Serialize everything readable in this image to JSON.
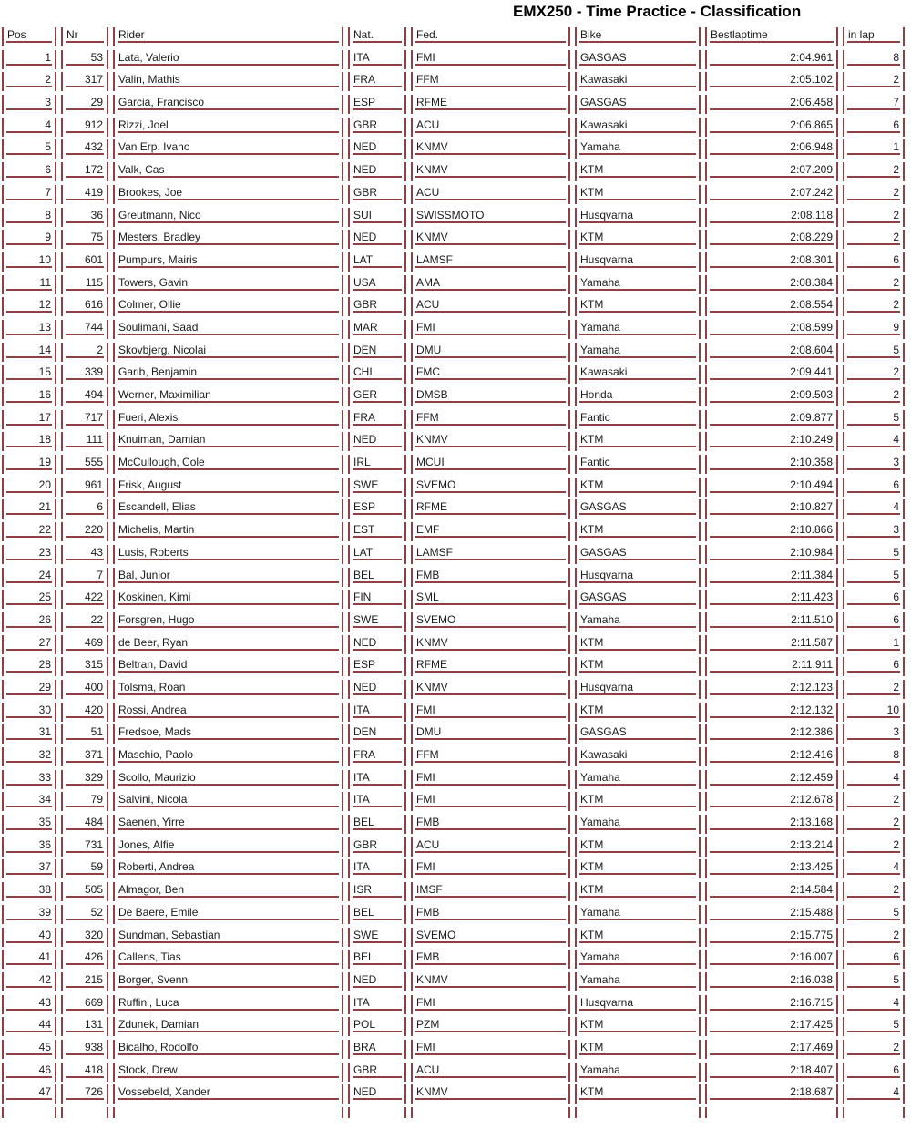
{
  "title": "EMX250 - Time Practice - Classification",
  "colors": {
    "table_border": "#8e4045",
    "text": "#1b1b1b"
  },
  "table": {
    "columns": [
      {
        "key": "pos",
        "label": "Pos",
        "align": "right"
      },
      {
        "key": "nr",
        "label": "Nr",
        "align": "right"
      },
      {
        "key": "rider",
        "label": "Rider",
        "align": "left"
      },
      {
        "key": "nat",
        "label": "Nat.",
        "align": "left"
      },
      {
        "key": "fed",
        "label": "Fed.",
        "align": "left"
      },
      {
        "key": "bike",
        "label": "Bike",
        "align": "left"
      },
      {
        "key": "best",
        "label": "Bestlaptime",
        "align": "right"
      },
      {
        "key": "lap",
        "label": "in lap",
        "align": "right"
      }
    ],
    "rows": [
      {
        "pos": "1",
        "nr": "53",
        "rider": "Lata, Valerio",
        "nat": "ITA",
        "fed": "FMI",
        "bike": "GASGAS",
        "best": "2:04.961",
        "lap": "8"
      },
      {
        "pos": "2",
        "nr": "317",
        "rider": "Valin, Mathis",
        "nat": "FRA",
        "fed": "FFM",
        "bike": "Kawasaki",
        "best": "2:05.102",
        "lap": "2"
      },
      {
        "pos": "3",
        "nr": "29",
        "rider": "Garcia, Francisco",
        "nat": "ESP",
        "fed": "RFME",
        "bike": "GASGAS",
        "best": "2:06.458",
        "lap": "7"
      },
      {
        "pos": "4",
        "nr": "912",
        "rider": "Rizzi, Joel",
        "nat": "GBR",
        "fed": "ACU",
        "bike": "Kawasaki",
        "best": "2:06.865",
        "lap": "6"
      },
      {
        "pos": "5",
        "nr": "432",
        "rider": "Van Erp, Ivano",
        "nat": "NED",
        "fed": "KNMV",
        "bike": "Yamaha",
        "best": "2:06.948",
        "lap": "1"
      },
      {
        "pos": "6",
        "nr": "172",
        "rider": "Valk, Cas",
        "nat": "NED",
        "fed": "KNMV",
        "bike": "KTM",
        "best": "2:07.209",
        "lap": "2"
      },
      {
        "pos": "7",
        "nr": "419",
        "rider": "Brookes, Joe",
        "nat": "GBR",
        "fed": "ACU",
        "bike": "KTM",
        "best": "2:07.242",
        "lap": "2"
      },
      {
        "pos": "8",
        "nr": "36",
        "rider": "Greutmann, Nico",
        "nat": "SUI",
        "fed": "SWISSMOTO",
        "bike": "Husqvarna",
        "best": "2:08.118",
        "lap": "2"
      },
      {
        "pos": "9",
        "nr": "75",
        "rider": "Mesters, Bradley",
        "nat": "NED",
        "fed": "KNMV",
        "bike": "KTM",
        "best": "2:08.229",
        "lap": "2"
      },
      {
        "pos": "10",
        "nr": "601",
        "rider": "Pumpurs, Mairis",
        "nat": "LAT",
        "fed": "LAMSF",
        "bike": "Husqvarna",
        "best": "2:08.301",
        "lap": "6"
      },
      {
        "pos": "11",
        "nr": "115",
        "rider": "Towers, Gavin",
        "nat": "USA",
        "fed": "AMA",
        "bike": "Yamaha",
        "best": "2:08.384",
        "lap": "2"
      },
      {
        "pos": "12",
        "nr": "616",
        "rider": "Colmer, Ollie",
        "nat": "GBR",
        "fed": "ACU",
        "bike": "KTM",
        "best": "2:08.554",
        "lap": "2"
      },
      {
        "pos": "13",
        "nr": "744",
        "rider": "Soulimani, Saad",
        "nat": "MAR",
        "fed": "FMI",
        "bike": "Yamaha",
        "best": "2:08.599",
        "lap": "9"
      },
      {
        "pos": "14",
        "nr": "2",
        "rider": "Skovbjerg, Nicolai",
        "nat": "DEN",
        "fed": "DMU",
        "bike": "Yamaha",
        "best": "2:08.604",
        "lap": "5"
      },
      {
        "pos": "15",
        "nr": "339",
        "rider": "Garib, Benjamin",
        "nat": "CHI",
        "fed": "FMC",
        "bike": "Kawasaki",
        "best": "2:09.441",
        "lap": "2"
      },
      {
        "pos": "16",
        "nr": "494",
        "rider": "Werner, Maximilian",
        "nat": "GER",
        "fed": "DMSB",
        "bike": "Honda",
        "best": "2:09.503",
        "lap": "2"
      },
      {
        "pos": "17",
        "nr": "717",
        "rider": "Fueri, Alexis",
        "nat": "FRA",
        "fed": "FFM",
        "bike": "Fantic",
        "best": "2:09.877",
        "lap": "5"
      },
      {
        "pos": "18",
        "nr": "111",
        "rider": "Knuiman, Damian",
        "nat": "NED",
        "fed": "KNMV",
        "bike": "KTM",
        "best": "2:10.249",
        "lap": "4"
      },
      {
        "pos": "19",
        "nr": "555",
        "rider": "McCullough, Cole",
        "nat": "IRL",
        "fed": "MCUI",
        "bike": "Fantic",
        "best": "2:10.358",
        "lap": "3"
      },
      {
        "pos": "20",
        "nr": "961",
        "rider": "Frisk, August",
        "nat": "SWE",
        "fed": "SVEMO",
        "bike": "KTM",
        "best": "2:10.494",
        "lap": "6"
      },
      {
        "pos": "21",
        "nr": "6",
        "rider": "Escandell, Elias",
        "nat": "ESP",
        "fed": "RFME",
        "bike": "GASGAS",
        "best": "2:10.827",
        "lap": "4"
      },
      {
        "pos": "22",
        "nr": "220",
        "rider": "Michelis, Martin",
        "nat": "EST",
        "fed": "EMF",
        "bike": "KTM",
        "best": "2:10.866",
        "lap": "3"
      },
      {
        "pos": "23",
        "nr": "43",
        "rider": "Lusis, Roberts",
        "nat": "LAT",
        "fed": "LAMSF",
        "bike": "GASGAS",
        "best": "2:10.984",
        "lap": "5"
      },
      {
        "pos": "24",
        "nr": "7",
        "rider": "Bal, Junior",
        "nat": "BEL",
        "fed": "FMB",
        "bike": "Husqvarna",
        "best": "2:11.384",
        "lap": "5"
      },
      {
        "pos": "25",
        "nr": "422",
        "rider": "Koskinen, Kimi",
        "nat": "FIN",
        "fed": "SML",
        "bike": "GASGAS",
        "best": "2:11.423",
        "lap": "6"
      },
      {
        "pos": "26",
        "nr": "22",
        "rider": "Forsgren, Hugo",
        "nat": "SWE",
        "fed": "SVEMO",
        "bike": "Yamaha",
        "best": "2:11.510",
        "lap": "6"
      },
      {
        "pos": "27",
        "nr": "469",
        "rider": "de Beer, Ryan",
        "nat": "NED",
        "fed": "KNMV",
        "bike": "KTM",
        "best": "2:11.587",
        "lap": "1"
      },
      {
        "pos": "28",
        "nr": "315",
        "rider": "Beltran, David",
        "nat": "ESP",
        "fed": "RFME",
        "bike": "KTM",
        "best": "2:11.911",
        "lap": "6"
      },
      {
        "pos": "29",
        "nr": "400",
        "rider": "Tolsma, Roan",
        "nat": "NED",
        "fed": "KNMV",
        "bike": "Husqvarna",
        "best": "2:12.123",
        "lap": "2"
      },
      {
        "pos": "30",
        "nr": "420",
        "rider": "Rossi, Andrea",
        "nat": "ITA",
        "fed": "FMI",
        "bike": "KTM",
        "best": "2:12.132",
        "lap": "10"
      },
      {
        "pos": "31",
        "nr": "51",
        "rider": "Fredsoe, Mads",
        "nat": "DEN",
        "fed": "DMU",
        "bike": "GASGAS",
        "best": "2:12.386",
        "lap": "3"
      },
      {
        "pos": "32",
        "nr": "371",
        "rider": "Maschio, Paolo",
        "nat": "FRA",
        "fed": "FFM",
        "bike": "Kawasaki",
        "best": "2:12.416",
        "lap": "8"
      },
      {
        "pos": "33",
        "nr": "329",
        "rider": "Scollo, Maurizio",
        "nat": "ITA",
        "fed": "FMI",
        "bike": "Yamaha",
        "best": "2:12.459",
        "lap": "4"
      },
      {
        "pos": "34",
        "nr": "79",
        "rider": "Salvini, Nicola",
        "nat": "ITA",
        "fed": "FMI",
        "bike": "KTM",
        "best": "2:12.678",
        "lap": "2"
      },
      {
        "pos": "35",
        "nr": "484",
        "rider": "Saenen, Yirre",
        "nat": "BEL",
        "fed": "FMB",
        "bike": "Yamaha",
        "best": "2:13.168",
        "lap": "2"
      },
      {
        "pos": "36",
        "nr": "731",
        "rider": "Jones, Alfie",
        "nat": "GBR",
        "fed": "ACU",
        "bike": "KTM",
        "best": "2:13.214",
        "lap": "2"
      },
      {
        "pos": "37",
        "nr": "59",
        "rider": "Roberti, Andrea",
        "nat": "ITA",
        "fed": "FMI",
        "bike": "KTM",
        "best": "2:13.425",
        "lap": "4"
      },
      {
        "pos": "38",
        "nr": "505",
        "rider": "Almagor, Ben",
        "nat": "ISR",
        "fed": "IMSF",
        "bike": "KTM",
        "best": "2:14.584",
        "lap": "2"
      },
      {
        "pos": "39",
        "nr": "52",
        "rider": "De Baere, Emile",
        "nat": "BEL",
        "fed": "FMB",
        "bike": "Yamaha",
        "best": "2:15.488",
        "lap": "5"
      },
      {
        "pos": "40",
        "nr": "320",
        "rider": "Sundman, Sebastian",
        "nat": "SWE",
        "fed": "SVEMO",
        "bike": "KTM",
        "best": "2:15.775",
        "lap": "2"
      },
      {
        "pos": "41",
        "nr": "426",
        "rider": "Callens, Tias",
        "nat": "BEL",
        "fed": "FMB",
        "bike": "Yamaha",
        "best": "2:16.007",
        "lap": "6"
      },
      {
        "pos": "42",
        "nr": "215",
        "rider": "Borger, Svenn",
        "nat": "NED",
        "fed": "KNMV",
        "bike": "Yamaha",
        "best": "2:16.038",
        "lap": "5"
      },
      {
        "pos": "43",
        "nr": "669",
        "rider": "Ruffini, Luca",
        "nat": "ITA",
        "fed": "FMI",
        "bike": "Husqvarna",
        "best": "2:16.715",
        "lap": "4"
      },
      {
        "pos": "44",
        "nr": "131",
        "rider": "Zdunek, Damian",
        "nat": "POL",
        "fed": "PZM",
        "bike": "KTM",
        "best": "2:17.425",
        "lap": "5"
      },
      {
        "pos": "45",
        "nr": "938",
        "rider": "Bicalho, Rodolfo",
        "nat": "BRA",
        "fed": "FMI",
        "bike": "KTM",
        "best": "2:17.469",
        "lap": "2"
      },
      {
        "pos": "46",
        "nr": "418",
        "rider": "Stock, Drew",
        "nat": "GBR",
        "fed": "ACU",
        "bike": "Yamaha",
        "best": "2:18.407",
        "lap": "6"
      },
      {
        "pos": "47",
        "nr": "726",
        "rider": "Vossebeld, Xander",
        "nat": "NED",
        "fed": "KNMV",
        "bike": "KTM",
        "best": "2:18.687",
        "lap": "4"
      }
    ]
  }
}
